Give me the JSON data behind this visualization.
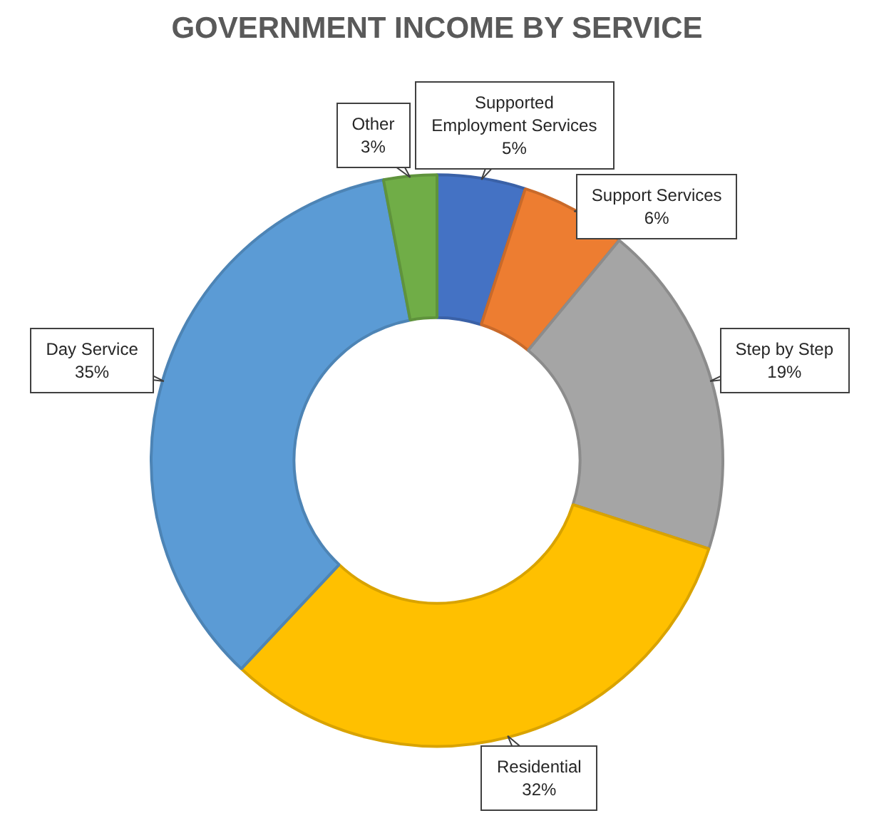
{
  "chart_data": {
    "type": "donut",
    "title": "GOVERNMENT INCOME BY SERVICE",
    "categories": [
      "Supported Employment Services",
      "Support Services",
      "Step by Step",
      "Residential",
      "Day Service",
      "Other"
    ],
    "values": [
      5,
      6,
      19,
      32,
      35,
      3
    ],
    "value_labels": [
      "5%",
      "6%",
      "19%",
      "32%",
      "35%",
      "3%"
    ],
    "colors": [
      "#4472c4",
      "#ed7d31",
      "#a5a5a5",
      "#ffc000",
      "#5b9bd5",
      "#70ad47"
    ],
    "legend": false
  }
}
